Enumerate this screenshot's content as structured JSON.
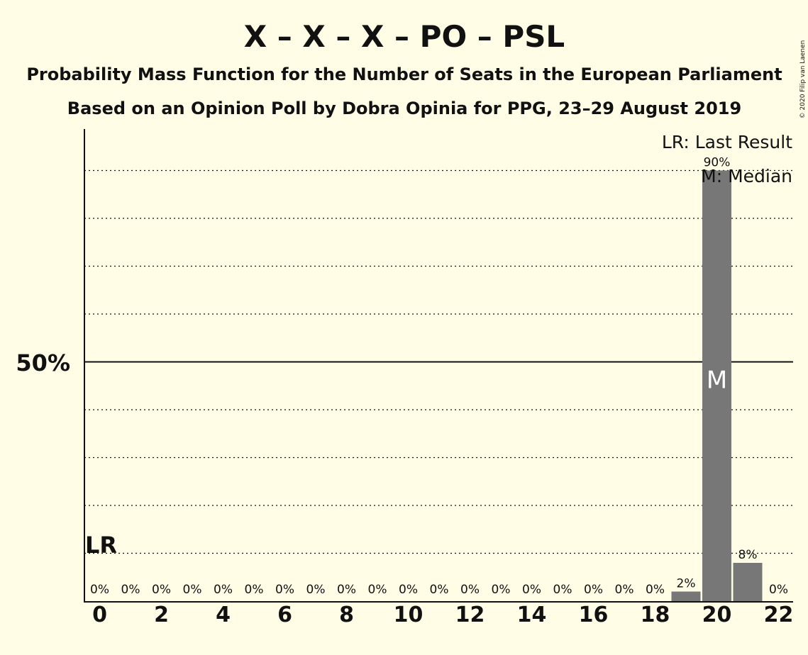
{
  "chart_data": {
    "type": "bar",
    "title": "X – X – X – PO – PSL",
    "subtitle1": "Probability Mass Function for the Number of Seats in the European Parliament",
    "subtitle2": "Based on an Opinion Poll by Dobra Opinia for PPG, 23–29 August 2019",
    "copyright": "© 2020 Filip van Laenen",
    "x": [
      0,
      1,
      2,
      3,
      4,
      5,
      6,
      7,
      8,
      9,
      10,
      11,
      12,
      13,
      14,
      15,
      16,
      17,
      18,
      19,
      20,
      21,
      22
    ],
    "values": [
      0,
      0,
      0,
      0,
      0,
      0,
      0,
      0,
      0,
      0,
      0,
      0,
      0,
      0,
      0,
      0,
      0,
      0,
      0,
      2,
      90,
      8,
      0
    ],
    "value_labels": [
      "0%",
      "0%",
      "0%",
      "0%",
      "0%",
      "0%",
      "0%",
      "0%",
      "0%",
      "0%",
      "0%",
      "0%",
      "0%",
      "0%",
      "0%",
      "0%",
      "0%",
      "0%",
      "0%",
      "2%",
      "90%",
      "8%",
      "0%"
    ],
    "x_tick_labels": [
      "0",
      "2",
      "4",
      "6",
      "8",
      "10",
      "12",
      "14",
      "16",
      "18",
      "20",
      "22"
    ],
    "y_tick_label": "50%",
    "ylim": [
      0,
      98
    ],
    "last_result_seat": 0,
    "last_result_marker": "LR",
    "median_seat": 20,
    "median_marker": "M",
    "legend": [
      "LR: Last Result",
      "M: Median"
    ],
    "legend_position": "top-right",
    "colors": {
      "background": "#fffde6",
      "bar": "#777777",
      "text": "#111111",
      "median_text": "#ffffff"
    }
  }
}
